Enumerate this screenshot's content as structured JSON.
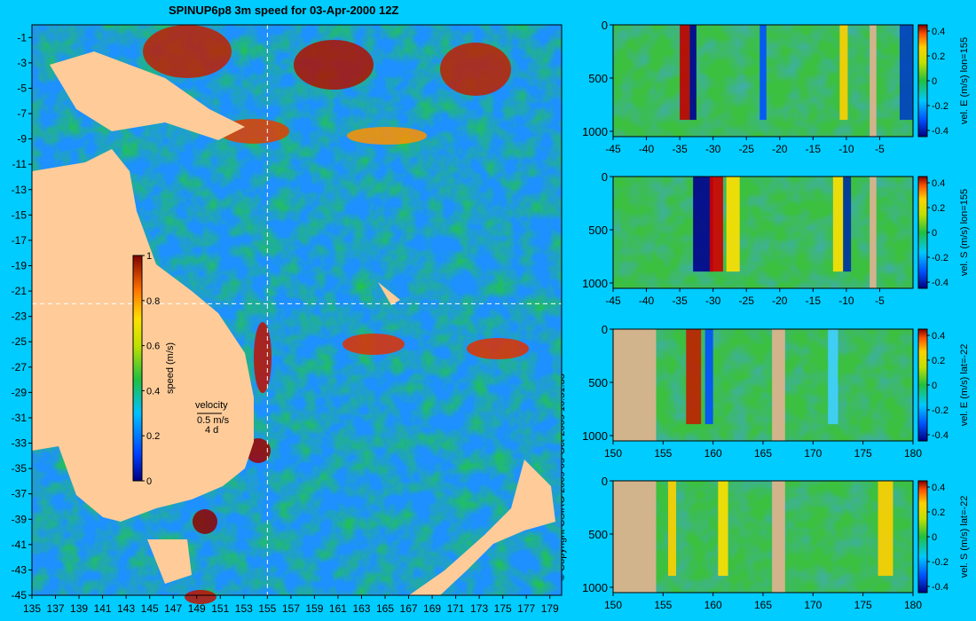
{
  "title": "SPINUP6p8 3m speed for 03-Apr-2000 12Z",
  "copyright": "© Copyright CSIRO 2009   05-Oct-2009 16:51:33",
  "colors": {
    "background": "#00ccff",
    "land": "#ffcc99",
    "section_land": "#d2b48c",
    "crosshair": "#ffffff"
  },
  "chart_data": [
    {
      "type": "heatmap",
      "title": "SPINUP6p8 3m speed for 03-Apr-2000 12Z",
      "x_ticks": [
        "135",
        "137",
        "139",
        "141",
        "143",
        "145",
        "147",
        "149",
        "151",
        "153",
        "155",
        "157",
        "159",
        "161",
        "163",
        "165",
        "167",
        "169",
        "171",
        "173",
        "175",
        "177",
        "179"
      ],
      "y_ticks": [
        "-1",
        "-3",
        "-5",
        "-7",
        "-9",
        "-11",
        "-13",
        "-15",
        "-17",
        "-19",
        "-21",
        "-23",
        "-25",
        "-27",
        "-29",
        "-31",
        "-33",
        "-35",
        "-37",
        "-39",
        "-41",
        "-43",
        "-45"
      ],
      "xlim": [
        135,
        180
      ],
      "ylim": [
        -45,
        0
      ],
      "colorbar": {
        "label": "speed (m/s)",
        "ticks": [
          "1",
          "0.8",
          "0.6",
          "0.4",
          "0.2",
          "0"
        ],
        "range": [
          0,
          1
        ]
      },
      "legend": {
        "title": "velocity",
        "line1": "0.5 m/s",
        "line2": "4 d"
      },
      "crosshair": {
        "lon": 155,
        "lat": -22
      }
    },
    {
      "type": "heatmap",
      "x_ticks": [
        "-45",
        "-40",
        "-35",
        "-30",
        "-25",
        "-20",
        "-15",
        "-10",
        "-5"
      ],
      "y_ticks": [
        "0",
        "500",
        "1000"
      ],
      "xlim": [
        -45,
        0
      ],
      "ylim": [
        1050,
        0
      ],
      "colorbar": {
        "label": "vel. E (m/s) lon=155",
        "ticks": [
          "0.4",
          "0.2",
          "0",
          "-0.2",
          "-0.4"
        ],
        "range": [
          -0.45,
          0.45
        ]
      }
    },
    {
      "type": "heatmap",
      "x_ticks": [
        "-45",
        "-40",
        "-35",
        "-30",
        "-25",
        "-20",
        "-15",
        "-10",
        "-5"
      ],
      "y_ticks": [
        "0",
        "500",
        "1000"
      ],
      "xlim": [
        -45,
        0
      ],
      "ylim": [
        1050,
        0
      ],
      "colorbar": {
        "label": "vel. S (m/s) lon=155",
        "ticks": [
          "0.4",
          "0.2",
          "0",
          "-0.2",
          "-0.4"
        ],
        "range": [
          -0.45,
          0.45
        ]
      }
    },
    {
      "type": "heatmap",
      "x_ticks": [
        "150",
        "155",
        "160",
        "165",
        "170",
        "175",
        "180"
      ],
      "y_ticks": [
        "0",
        "500",
        "1000"
      ],
      "xlim": [
        150,
        180
      ],
      "ylim": [
        1050,
        0
      ],
      "colorbar": {
        "label": "vel. E (m/s) lat=-22",
        "ticks": [
          "0.4",
          "0.2",
          "0",
          "-0.2",
          "-0.4"
        ],
        "range": [
          -0.45,
          0.45
        ]
      }
    },
    {
      "type": "heatmap",
      "x_ticks": [
        "150",
        "155",
        "160",
        "165",
        "170",
        "175",
        "180"
      ],
      "y_ticks": [
        "0",
        "500",
        "1000"
      ],
      "xlim": [
        150,
        180
      ],
      "ylim": [
        1050,
        0
      ],
      "colorbar": {
        "label": "vel. S (m/s) lat=-22",
        "ticks": [
          "0.4",
          "0.2",
          "0",
          "-0.2",
          "-0.4"
        ],
        "range": [
          -0.45,
          0.45
        ]
      }
    }
  ]
}
